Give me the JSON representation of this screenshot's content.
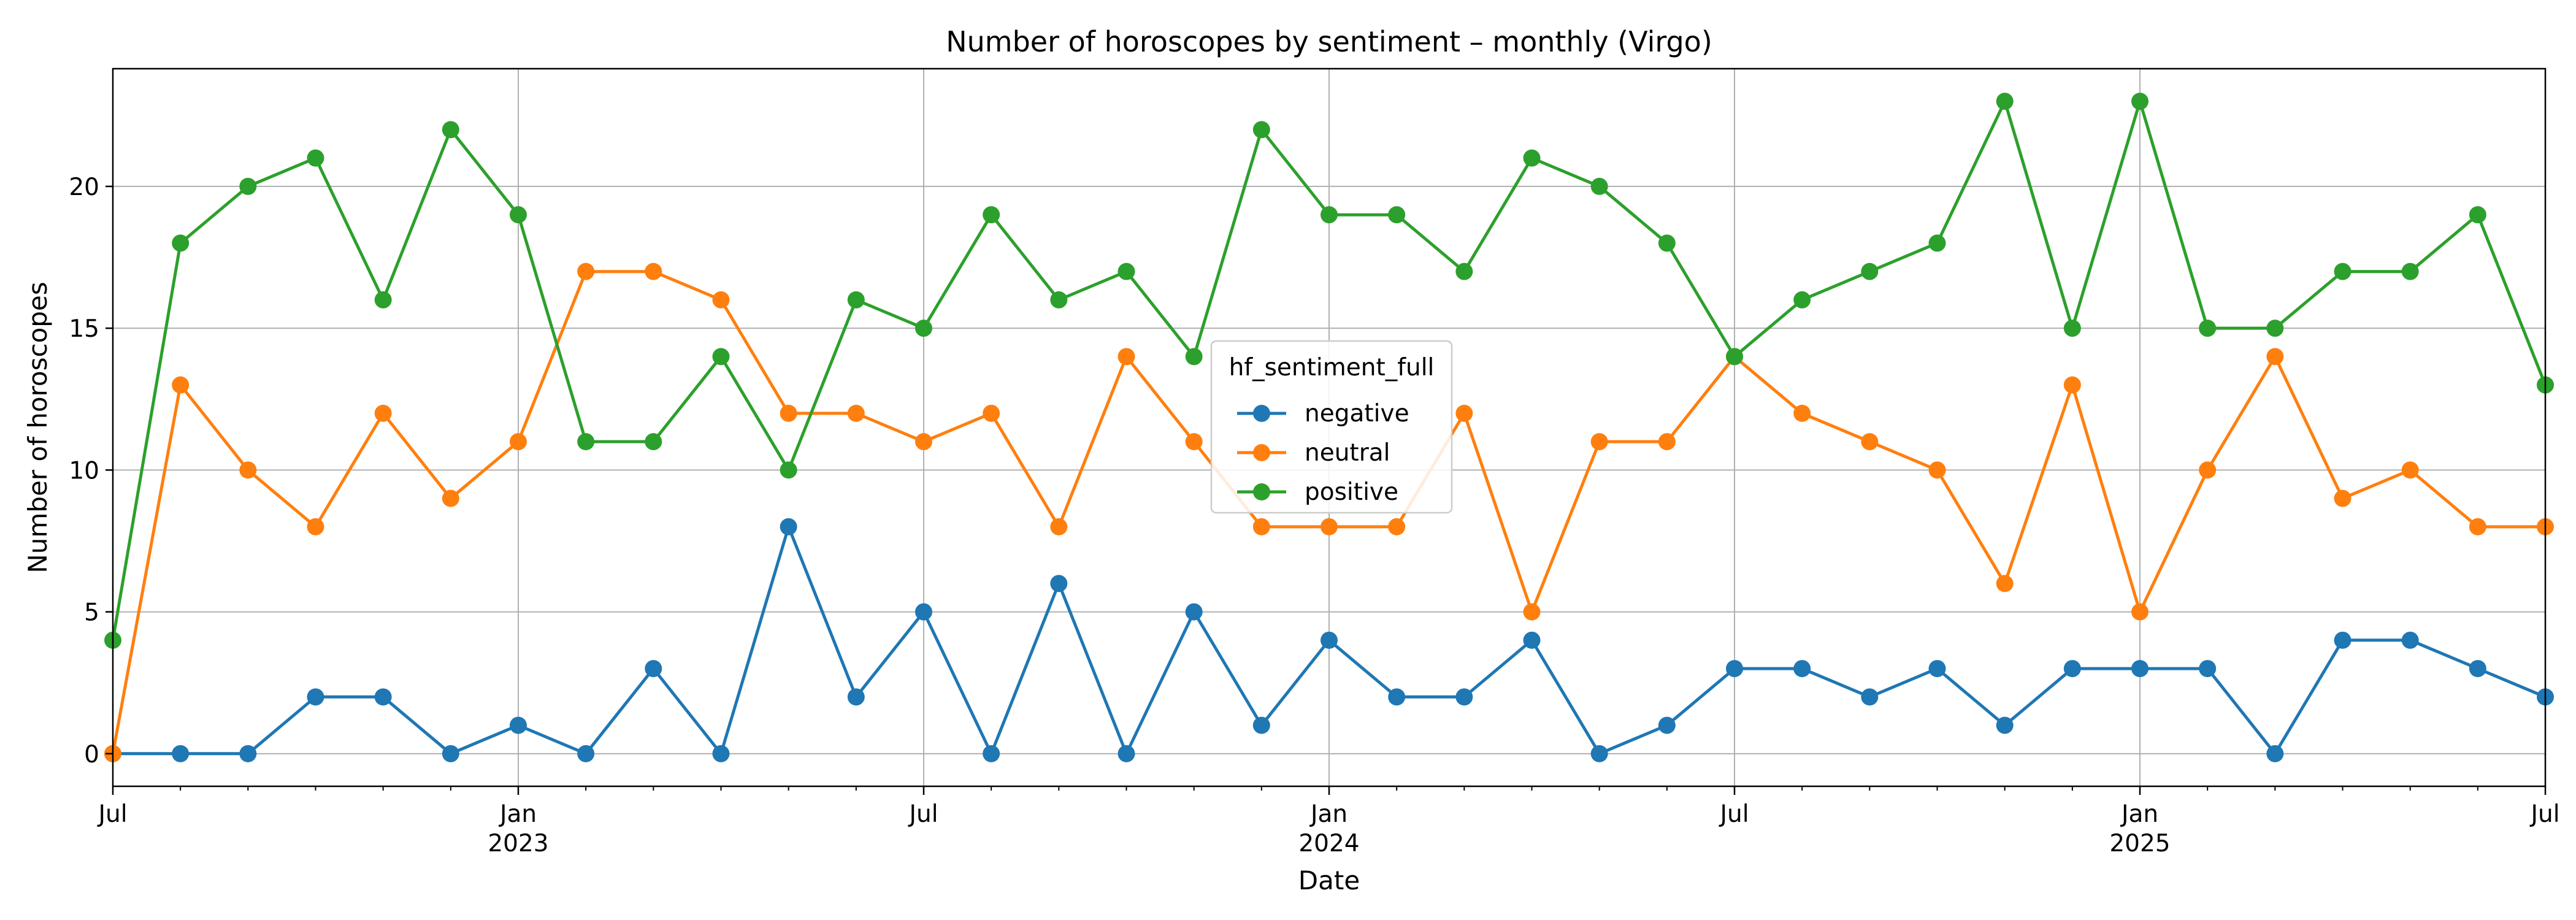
{
  "chart_data": {
    "type": "line",
    "title": "Number of horoscopes by sentiment – monthly (Virgo)",
    "xlabel": "Date",
    "ylabel": "Number of horoscopes",
    "x_start": "2022-07",
    "x_end": "2025-07",
    "x_range": [
      "2022-07",
      "2025-07"
    ],
    "ylim": [
      -1.15,
      24.15
    ],
    "yticks": [
      0,
      5,
      10,
      15,
      20
    ],
    "xticks_major": [
      {
        "date": "2022-07",
        "label": "Jul",
        "year": ""
      },
      {
        "date": "2023-01",
        "label": "Jan",
        "year": "2023"
      },
      {
        "date": "2023-07",
        "label": "Jul",
        "year": ""
      },
      {
        "date": "2024-01",
        "label": "Jan",
        "year": "2024"
      },
      {
        "date": "2024-07",
        "label": "Jul",
        "year": ""
      },
      {
        "date": "2025-01",
        "label": "Jan",
        "year": "2025"
      },
      {
        "date": "2025-07",
        "label": "Jul",
        "year": ""
      }
    ],
    "grid": true,
    "legend": {
      "title": "hf_sentiment_full",
      "placement": "center"
    },
    "series": [
      {
        "name": "negative",
        "color": "#1f77b4",
        "values": [
          0,
          0,
          0,
          2,
          2,
          0,
          1,
          0,
          3,
          0,
          8,
          2,
          5,
          0,
          6,
          0,
          5,
          1,
          4,
          2,
          2,
          4,
          0,
          1,
          3,
          3,
          2,
          3,
          1,
          3,
          3,
          3,
          0,
          4,
          4,
          3,
          2
        ]
      },
      {
        "name": "neutral",
        "color": "#ff7f0e",
        "values": [
          0,
          13,
          10,
          8,
          12,
          9,
          11,
          17,
          17,
          16,
          12,
          12,
          11,
          12,
          8,
          14,
          11,
          8,
          8,
          8,
          12,
          5,
          11,
          11,
          14,
          12,
          11,
          10,
          6,
          13,
          5,
          10,
          14,
          9,
          10,
          8,
          8
        ]
      },
      {
        "name": "positive",
        "color": "#2ca02c",
        "values": [
          4,
          18,
          20,
          21,
          16,
          22,
          19,
          11,
          11,
          14,
          10,
          16,
          15,
          19,
          16,
          17,
          14,
          22,
          19,
          19,
          17,
          21,
          20,
          18,
          14,
          16,
          17,
          18,
          23,
          15,
          23,
          15,
          15,
          17,
          17,
          19,
          13
        ]
      }
    ]
  }
}
